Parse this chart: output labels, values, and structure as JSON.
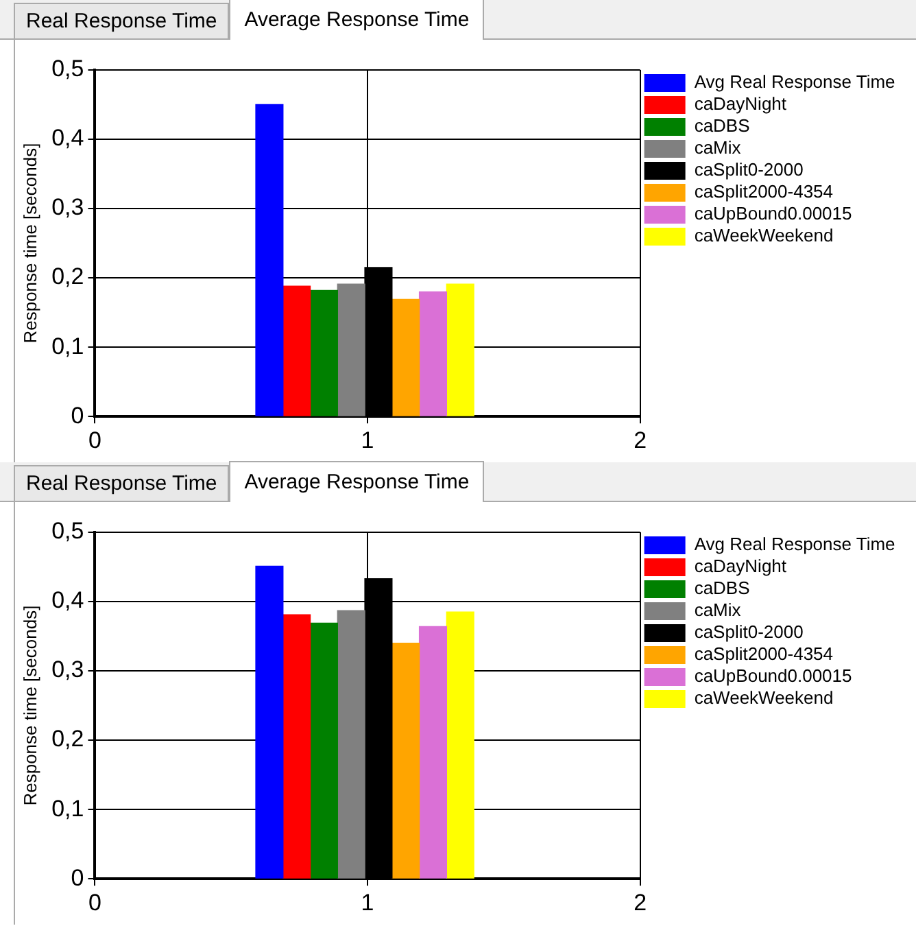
{
  "chart_data": [
    {
      "type": "bar",
      "title": "Average Response Time",
      "annotations": [
        "Real Response Time"
      ],
      "ylabel": "Response time [seconds]",
      "xlim": [
        0,
        2
      ],
      "xticks": [
        0,
        1,
        2
      ],
      "ylim": [
        0,
        0.5
      ],
      "yticks": [
        0,
        {
          "value": 0.1,
          "label": "0,1"
        },
        {
          "value": 0.2,
          "label": "0,2"
        },
        {
          "value": 0.3,
          "label": "0,3"
        },
        {
          "value": 0.4,
          "label": "0,4"
        },
        {
          "value": 0.5,
          "label": "0,5"
        }
      ],
      "grid": true,
      "legend": "right",
      "series": [
        {
          "name": "Avg Real Response Time",
          "color": "#0000ff",
          "x": [
            0.64
          ],
          "values": [
            0.45
          ]
        },
        {
          "name": "caDayNight",
          "color": "#ff0000",
          "x": [
            0.74
          ],
          "values": [
            0.188
          ]
        },
        {
          "name": "caDBS",
          "color": "#008000",
          "x": [
            0.84
          ],
          "values": [
            0.182
          ]
        },
        {
          "name": "caMix",
          "color": "#808080",
          "x": [
            0.94
          ],
          "values": [
            0.191
          ]
        },
        {
          "name": "caSplit0-2000",
          "color": "#000000",
          "x": [
            1.04
          ],
          "values": [
            0.215
          ]
        },
        {
          "name": "caSplit2000-4354",
          "color": "#ffa500",
          "x": [
            1.14
          ],
          "values": [
            0.169
          ]
        },
        {
          "name": "caUpBound0.00015",
          "color": "#da70d6",
          "x": [
            1.24
          ],
          "values": [
            0.18
          ]
        },
        {
          "name": "caWeekWeekend",
          "color": "#ffff00",
          "x": [
            1.34
          ],
          "values": [
            0.191
          ]
        }
      ]
    },
    {
      "type": "bar",
      "title": "Average Response Time",
      "annotations": [
        "Real Response Time"
      ],
      "ylabel": "Response time [seconds]",
      "xlim": [
        0,
        2
      ],
      "xticks": [
        0,
        1,
        2
      ],
      "ylim": [
        0,
        0.5
      ],
      "yticks": [
        0,
        {
          "value": 0.1,
          "label": "0,1"
        },
        {
          "value": 0.2,
          "label": "0,2"
        },
        {
          "value": 0.3,
          "label": "0,3"
        },
        {
          "value": 0.4,
          "label": "0,4"
        },
        {
          "value": 0.5,
          "label": "0,5"
        }
      ],
      "grid": true,
      "legend": "right",
      "series": [
        {
          "name": "Avg Real Response Time",
          "color": "#0000ff",
          "x": [
            0.64
          ],
          "values": [
            0.451
          ]
        },
        {
          "name": "caDayNight",
          "color": "#ff0000",
          "x": [
            0.74
          ],
          "values": [
            0.381
          ]
        },
        {
          "name": "caDBS",
          "color": "#008000",
          "x": [
            0.84
          ],
          "values": [
            0.369
          ]
        },
        {
          "name": "caMix",
          "color": "#808080",
          "x": [
            0.94
          ],
          "values": [
            0.387
          ]
        },
        {
          "name": "caSplit0-2000",
          "color": "#000000",
          "x": [
            1.04
          ],
          "values": [
            0.433
          ]
        },
        {
          "name": "caSplit2000-4354",
          "color": "#ffa500",
          "x": [
            1.14
          ],
          "values": [
            0.34
          ]
        },
        {
          "name": "caUpBound0.00015",
          "color": "#da70d6",
          "x": [
            1.24
          ],
          "values": [
            0.364
          ]
        },
        {
          "name": "caWeekWeekend",
          "color": "#ffff00",
          "x": [
            1.34
          ],
          "values": [
            0.385
          ]
        }
      ]
    }
  ]
}
